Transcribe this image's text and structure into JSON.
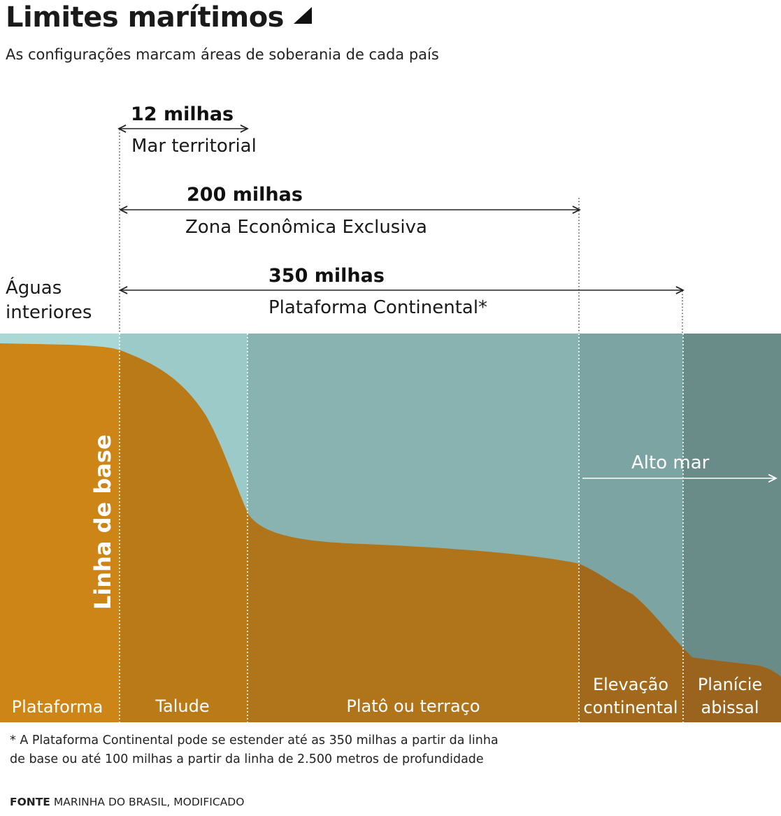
{
  "header": {
    "title": "Limites marítimos",
    "subtitle": "As configurações marcam áreas de soberania de cada país"
  },
  "limits": {
    "territorial": {
      "distance": "12 milhas",
      "name": "Mar territorial"
    },
    "eez": {
      "distance": "200 milhas",
      "name": "Zona Econômica Exclusiva"
    },
    "shelf": {
      "distance": "350 milhas",
      "name": "Plataforma Continental*"
    },
    "inner_waters": [
      "Águas",
      "interiores"
    ],
    "baseline": "Linha de base",
    "high_seas": "Alto mar"
  },
  "zones": {
    "plataforma": "Plataforma",
    "talude": "Talude",
    "plato": "Platô ou terraço",
    "elevacao": [
      "Elevação",
      "continental"
    ],
    "planicie": [
      "Planície",
      "abissal"
    ]
  },
  "footnote": {
    "line1": "* A Plataforma Continental pode se estender até as 350 milhas a partir da linha",
    "line2": "de base ou até 100 milhas a partir da linha de 2.500 metros de profundidade"
  },
  "source": {
    "label": "FONTE",
    "text": "MARINHA DO BRASIL, MODIFICADO"
  },
  "colors": {
    "water_inner": "#a9d8d6",
    "water_territorial": "#9bcac8",
    "water_eez": "#89b3b1",
    "water_shelf": "#7ca4a3",
    "water_high": "#6a8c89",
    "land_plataforma": "#cc8516",
    "land_talude": "#bb7a18",
    "land_plato": "#b0741b",
    "land_elevacao": "#a2691c",
    "land_planicie": "#9a641e"
  }
}
